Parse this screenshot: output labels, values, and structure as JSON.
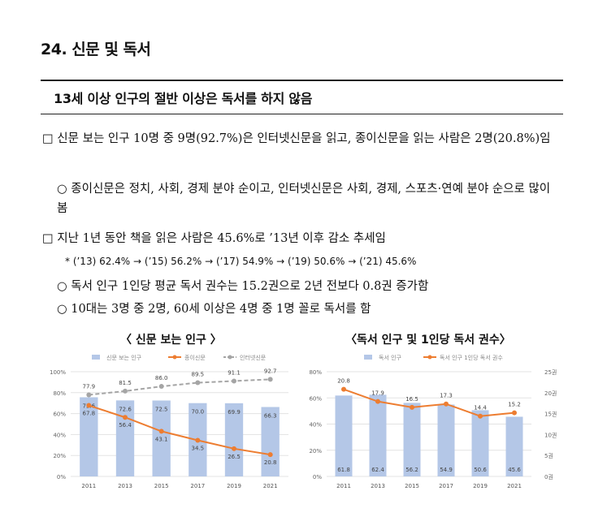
{
  "section": {
    "title": "24. 신문 및 독서",
    "subtitle": "13세 이상 인구의 절반 이상은 독서를 하지 않음"
  },
  "paragraphs": {
    "p1": "□ 신문 보는 인구 10명 중 9명(92.7%)은 인터넷신문을 읽고, 종이신문을 읽는 사람은 2명(20.8%)임",
    "p2": "○ 종이신문은 정치, 사회, 경제 분야 순이고, 인터넷신문은 사회, 경제, 스포츠·연예 분야 순으로 많이 봄",
    "p3": "□ 지난 1년 동안 책을 읽은 사람은 45.6%로 ’13년 이후 감소 추세임",
    "p4": "* (’13) 62.4% → (’15) 56.2% → (’17) 54.9% → (’19) 50.6% → (’21) 45.6%",
    "p5": "○ 독서 인구 1인당 평균 독서 권수는 15.2권으로 2년 전보다 0.8권 증가함",
    "p6": "○ 10대는 3명 중 2명, 60세 이상은 4명 중 1명 꼴로 독서를 함"
  },
  "chart_data": [
    {
      "type": "bar",
      "title": "〈 신문 보는 인구 〉",
      "categories": [
        "2011",
        "2013",
        "2015",
        "2017",
        "2019",
        "2021"
      ],
      "ylim": [
        0,
        100
      ],
      "yticks": [
        "0%",
        "20%",
        "40%",
        "60%",
        "80%",
        "100%"
      ],
      "series": [
        {
          "name": "신문 보는 인구",
          "kind": "bar",
          "color": "#b4c7e7",
          "values": [
            75.6,
            72.6,
            72.5,
            70.0,
            69.9,
            66.3
          ],
          "labels": [
            "75.6",
            "72.6",
            "72.5",
            "70.0",
            "69.9",
            "66.3"
          ]
        },
        {
          "name": "종이신문",
          "kind": "line",
          "color": "#ed7d31",
          "values": [
            67.8,
            56.4,
            43.1,
            34.5,
            26.5,
            20.8
          ],
          "labels": [
            "67.8",
            "56.4",
            "43.1",
            "34.5",
            "26.5",
            "20.8"
          ]
        },
        {
          "name": "인터넷신문",
          "kind": "dashed",
          "color": "#a5a5a5",
          "values": [
            77.9,
            81.5,
            86.0,
            89.5,
            91.1,
            92.7
          ],
          "labels": [
            "77.9",
            "81.5",
            "86.0",
            "89.5",
            "91.1",
            "92.7"
          ]
        }
      ]
    },
    {
      "type": "bar",
      "title": "〈독서 인구 및 1인당 독서 권수〉",
      "categories": [
        "2011",
        "2013",
        "2015",
        "2017",
        "2019",
        "2021"
      ],
      "ylim": [
        0,
        80
      ],
      "yticks": [
        "0%",
        "20%",
        "40%",
        "60%",
        "80%"
      ],
      "y2lim": [
        0,
        25
      ],
      "y2ticks": [
        "0권",
        "5권",
        "10권",
        "15권",
        "20권",
        "25권"
      ],
      "series": [
        {
          "name": "독서 인구",
          "kind": "bar",
          "color": "#b4c7e7",
          "values": [
            61.8,
            62.4,
            56.2,
            54.9,
            50.6,
            45.6
          ],
          "labels": [
            "61.8",
            "62.4",
            "56.2",
            "54.9",
            "50.6",
            "45.6"
          ]
        },
        {
          "name": "독서 인구 1인당 독서 권수",
          "kind": "line",
          "color": "#ed7d31",
          "axis": "right",
          "values": [
            20.8,
            17.9,
            16.5,
            17.3,
            14.4,
            15.2
          ],
          "labels": [
            "20.8",
            "17.9",
            "16.5",
            "17.3",
            "14.4",
            "15.2"
          ]
        }
      ]
    }
  ]
}
